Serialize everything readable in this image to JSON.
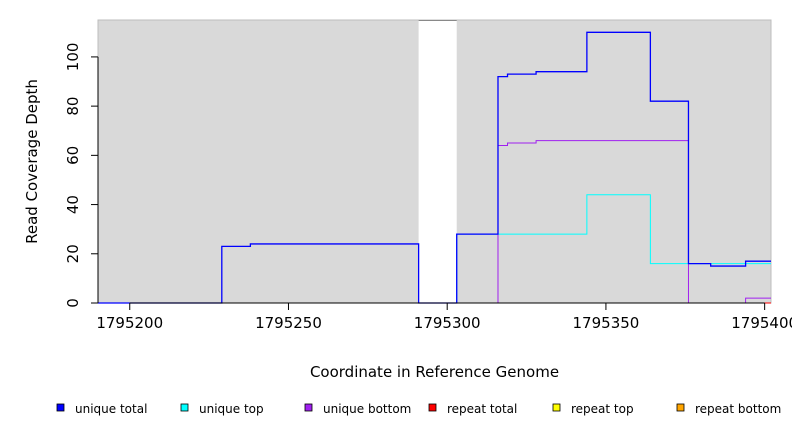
{
  "chart_data": {
    "type": "line",
    "title": "",
    "xlabel": "Coordinate in Reference Genome",
    "ylabel": "Read Coverage Depth",
    "xlim": [
      1795190,
      1795402
    ],
    "ylim": [
      0,
      115
    ],
    "x_ticks": [
      1795200,
      1795250,
      1795300,
      1795350,
      1795400
    ],
    "x_tick_labels": [
      "1795200",
      "1795250",
      "1795300",
      "1795350",
      "1795400"
    ],
    "y_ticks": [
      0,
      20,
      40,
      60,
      80,
      100
    ],
    "y_tick_labels": [
      "0",
      "20",
      "40",
      "60",
      "80",
      "100"
    ],
    "shaded_background": "#d9d9d9",
    "gap_region": [
      1795291,
      1795303
    ],
    "legend_position": "bottom",
    "series": [
      {
        "name": "unique total",
        "color": "#0000ff",
        "x": [
          1795190,
          1795229,
          1795238,
          1795291,
          1795303,
          1795316,
          1795319,
          1795328,
          1795344,
          1795364,
          1795376,
          1795383,
          1795394,
          1795402
        ],
        "y": [
          0,
          23,
          24,
          0,
          28,
          92,
          93,
          94,
          110,
          82,
          16,
          15,
          17,
          17
        ]
      },
      {
        "name": "unique top",
        "color": "#00ffff",
        "x": [
          1795190,
          1795291,
          1795303,
          1795316,
          1795344,
          1795364,
          1795376,
          1795402
        ],
        "y": [
          0,
          0,
          28,
          28,
          44,
          16,
          16,
          16
        ]
      },
      {
        "name": "unique bottom",
        "color": "#a020f0",
        "x": [
          1795190,
          1795316,
          1795319,
          1795328,
          1795376,
          1795394,
          1795402
        ],
        "y": [
          0,
          64,
          65,
          66,
          0,
          2,
          2
        ]
      },
      {
        "name": "repeat total",
        "color": "#ff0000",
        "x": [
          1795190,
          1795402
        ],
        "y": [
          0,
          0
        ]
      },
      {
        "name": "repeat top",
        "color": "#ffff00",
        "x": [
          1795190,
          1795402
        ],
        "y": [
          0,
          0
        ]
      },
      {
        "name": "repeat bottom",
        "color": "#ffa500",
        "x": [
          1795190,
          1795402
        ],
        "y": [
          0,
          0
        ]
      }
    ]
  }
}
